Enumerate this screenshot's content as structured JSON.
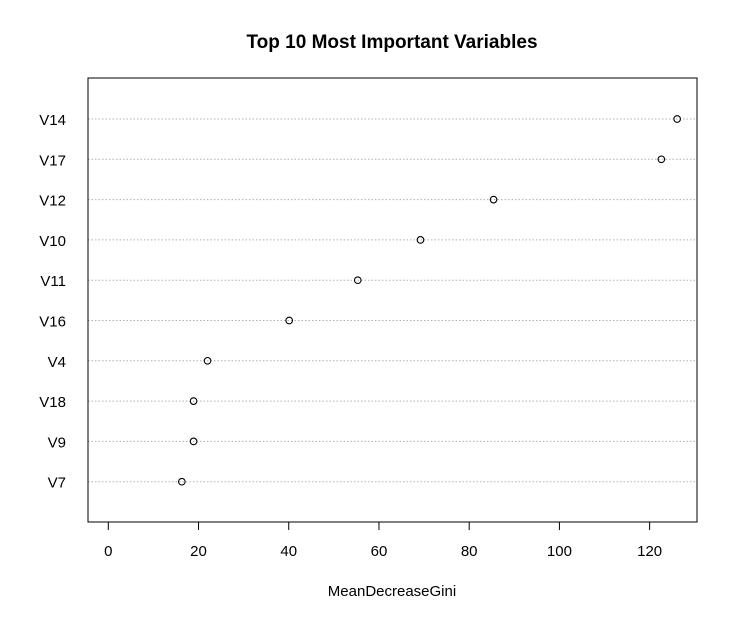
{
  "chart_data": {
    "type": "scatter",
    "subtype": "dotchart",
    "title": "Top 10 Most Important Variables",
    "xlabel": "MeanDecreaseGini",
    "ylabel": "",
    "categories": [
      "V14",
      "V17",
      "V12",
      "V10",
      "V11",
      "V16",
      "V4",
      "V18",
      "V9",
      "V7"
    ],
    "values": [
      126.1,
      122.6,
      85.4,
      69.2,
      55.3,
      40.1,
      22.0,
      18.9,
      18.9,
      16.3
    ],
    "xlim": [
      -4.5,
      130.5
    ],
    "xticks": [
      0,
      20,
      40,
      60,
      80,
      100,
      120
    ],
    "grid": "horizontal dotted lines per category",
    "legend": "none",
    "colors": {
      "points": "#000000",
      "grid": "#b0b0b0",
      "frame": "#000000"
    }
  }
}
